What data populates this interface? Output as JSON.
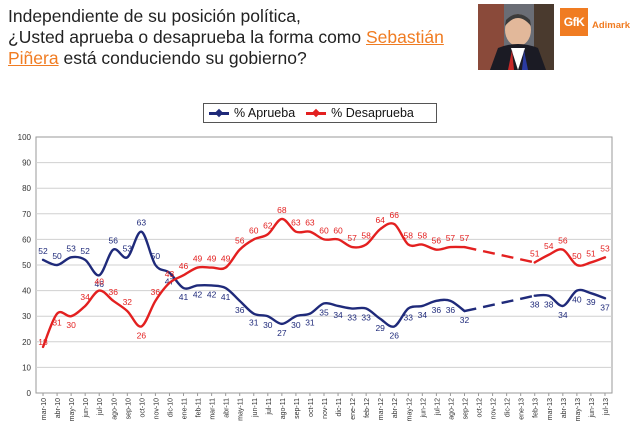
{
  "header": {
    "line1": "Independiente de su posición política,",
    "line2_a": "¿Usted aprueba o desaprueba la forma como",
    "name_a": "Sebastián",
    "name_b": "Piñera",
    "line3_b": "está conduciendo su gobierno?"
  },
  "logo": {
    "box": "GfK",
    "text": "Adimark"
  },
  "photo": {
    "label": "president-photo"
  },
  "colors": {
    "aprueba": "#1f2a7a",
    "desaprueba": "#e32020",
    "grid": "#d0d0d0",
    "text": "#333333"
  },
  "chart_data": {
    "type": "line",
    "title": "",
    "xlabel": "",
    "ylabel": "",
    "ylim": [
      0,
      100
    ],
    "yticks": [
      0,
      10,
      20,
      30,
      40,
      50,
      60,
      70,
      80,
      90,
      100
    ],
    "categories": [
      "mar-10",
      "abr-10",
      "may-10",
      "jun-10",
      "jul-10",
      "ago-10",
      "sep-10",
      "oct-10",
      "nov-10",
      "dic-10",
      "ene-11",
      "feb-11",
      "mar-11",
      "abr-11",
      "may-11",
      "jun-11",
      "jul-11",
      "ago-11",
      "sep-11",
      "oct-11",
      "nov-11",
      "dic-11",
      "ene-12",
      "feb-12",
      "mar-12",
      "abr-12",
      "may-12",
      "jun-12",
      "jul-12",
      "ago-12",
      "sep-12",
      "oct-12",
      "nov-12",
      "dic-12",
      "ene-13",
      "feb-13",
      "mar-13",
      "abr-13",
      "may-13",
      "jun-13",
      "jul-13"
    ],
    "series": [
      {
        "name": "% Aprueba",
        "values": [
          52,
          50,
          53,
          52,
          46,
          56,
          53,
          63,
          50,
          47,
          41,
          42,
          42,
          41,
          36,
          31,
          30,
          27,
          30,
          31,
          35,
          34,
          33,
          33,
          29,
          26,
          33,
          34,
          36,
          36,
          32,
          null,
          null,
          null,
          null,
          38,
          38,
          34,
          40,
          39,
          37
        ],
        "labels": [
          52,
          50,
          53,
          52,
          46,
          56,
          53,
          63,
          50,
          47,
          41,
          42,
          42,
          41,
          36,
          31,
          30,
          27,
          30,
          31,
          35,
          34,
          33,
          33,
          29,
          26,
          33,
          34,
          36,
          36,
          32,
          null,
          null,
          null,
          null,
          38,
          38,
          34,
          40,
          39,
          37
        ]
      },
      {
        "name": "% Desaprueba",
        "values": [
          18,
          31,
          30,
          34,
          40,
          36,
          32,
          26,
          36,
          43,
          46,
          49,
          49,
          49,
          56,
          60,
          62,
          68,
          63,
          63,
          60,
          60,
          57,
          58,
          64,
          66,
          58,
          58,
          56,
          57,
          57,
          null,
          null,
          null,
          null,
          51,
          54,
          56,
          50,
          51,
          53
        ],
        "labels": [
          18,
          31,
          30,
          34,
          40,
          36,
          32,
          26,
          36,
          43,
          46,
          49,
          49,
          49,
          56,
          60,
          62,
          68,
          63,
          63,
          60,
          60,
          57,
          58,
          64,
          66,
          58,
          58,
          56,
          57,
          57,
          null,
          null,
          null,
          null,
          51,
          54,
          56,
          50,
          51,
          53
        ]
      }
    ],
    "legend": "top-center"
  }
}
